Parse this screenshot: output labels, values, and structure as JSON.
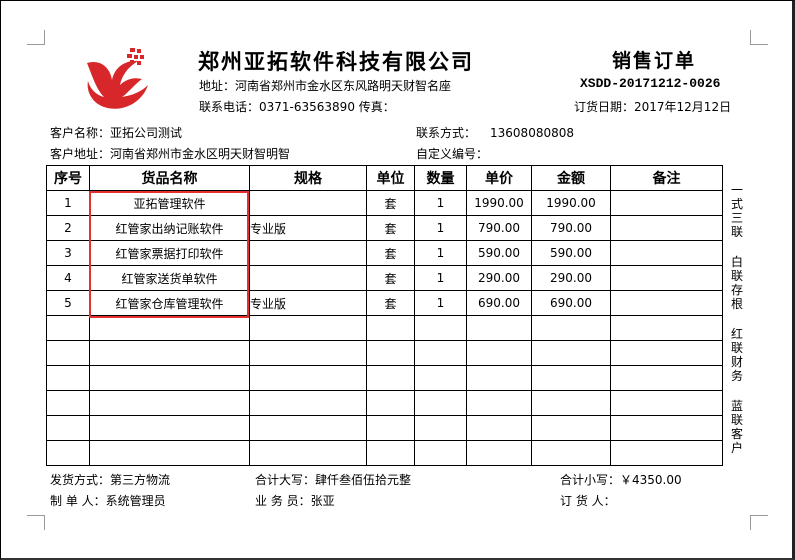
{
  "company": {
    "name": "郑州亚拓软件科技有限公司",
    "address": "地址：河南省郑州市金水区东风路明天财智名座",
    "contact": "联系电话：0371-63563890 传真：",
    "logo_color": "#d8272b"
  },
  "order": {
    "title": "销售订单",
    "number": "XSDD-20171212-0026",
    "date": "订货日期：2017年12月12日"
  },
  "customer": {
    "name_label": "客户名称：",
    "name": "亚拓公司测试",
    "address_label": "客户地址：",
    "address": "河南省郑州市金水区明天财智明智",
    "contact_label": "联系方式：",
    "contact": "13608080808",
    "custom_label": "自定义编号："
  },
  "table": {
    "headers": [
      "序号",
      "货品名称",
      "规格",
      "单位",
      "数量",
      "单价",
      "金额",
      "备注"
    ],
    "rows": [
      [
        "1",
        "亚拓管理软件",
        "",
        "套",
        "1",
        "1990.00",
        "1990.00",
        ""
      ],
      [
        "2",
        "红管家出纳记账软件",
        "专业版",
        "套",
        "1",
        "790.00",
        "790.00",
        ""
      ],
      [
        "3",
        "红管家票据打印软件",
        "",
        "套",
        "1",
        "590.00",
        "590.00",
        ""
      ],
      [
        "4",
        "红管家送货单软件",
        "",
        "套",
        "1",
        "290.00",
        "290.00",
        ""
      ],
      [
        "5",
        "红管家仓库管理软件",
        "专业版",
        "套",
        "1",
        "690.00",
        "690.00",
        ""
      ]
    ],
    "empty_rows": 6,
    "highlight_color": "#e53030"
  },
  "side_note": [
    "一式三联",
    "白联存根",
    "红联财务",
    "蓝联客户"
  ],
  "footer": {
    "shipping": "发货方式：第三方物流",
    "total_upper": "合计大写：肆仟叁佰伍拾元整",
    "total_lower": "合计小写：￥4350.00",
    "maker": "制 单 人：系统管理员",
    "salesman": "业 务 员：张亚",
    "orderer": "订 货 人："
  }
}
